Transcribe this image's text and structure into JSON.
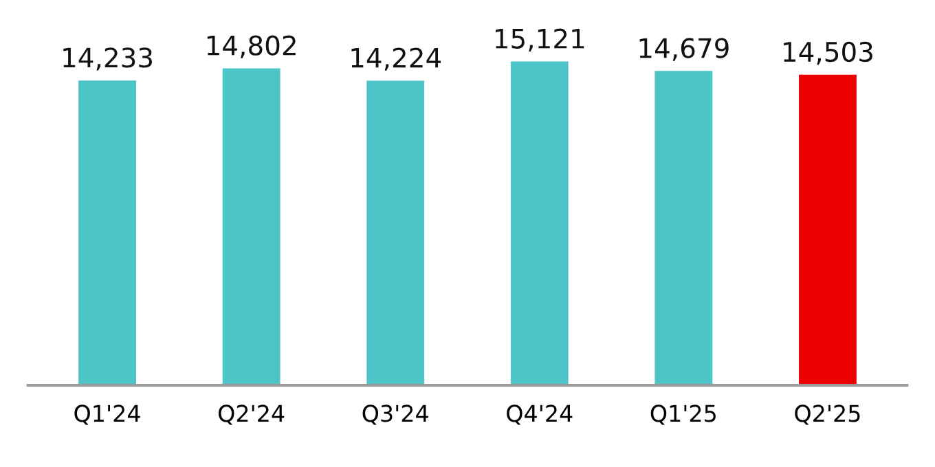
{
  "chart_data": {
    "type": "bar",
    "categories": [
      "Q1'24",
      "Q2'24",
      "Q3'24",
      "Q4'24",
      "Q1'25",
      "Q2'25"
    ],
    "values": [
      14233,
      14802,
      14224,
      15121,
      14679,
      14503
    ],
    "colors": [
      "#4dc4c8",
      "#4dc4c8",
      "#4dc4c8",
      "#4dc4c8",
      "#4dc4c8",
      "#ee0000"
    ],
    "value_labels": [
      "14,233",
      "14,802",
      "14,224",
      "15,121",
      "14,679",
      "14,503"
    ],
    "tick_labels": "x",
    "grid": false,
    "legend": false
  }
}
